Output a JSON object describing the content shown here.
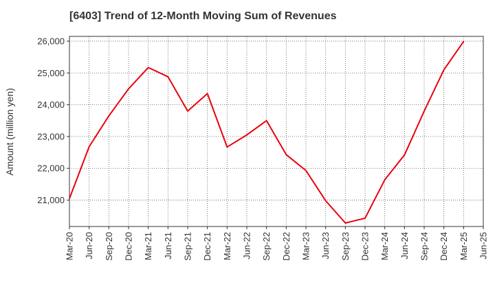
{
  "chart_data": {
    "type": "line",
    "title": "[6403]  Trend of 12-Month Moving Sum of Revenues",
    "xlabel": "",
    "ylabel": "Amount (million yen)",
    "x_ticks": [
      "Mar-20",
      "Jun-20",
      "Sep-20",
      "Dec-20",
      "Mar-21",
      "Jun-21",
      "Sep-21",
      "Dec-21",
      "Mar-22",
      "Jun-22",
      "Sep-22",
      "Dec-22",
      "Mar-23",
      "Jun-23",
      "Sep-23",
      "Dec-23",
      "Mar-24",
      "Jun-24",
      "Sep-24",
      "Dec-24",
      "Mar-25",
      "Jun-25"
    ],
    "y_ticks": [
      "21,000",
      "22,000",
      "23,000",
      "24,000",
      "25,000",
      "26,000"
    ],
    "y_tick_values": [
      21000,
      22000,
      23000,
      24000,
      25000,
      26000
    ],
    "ylim": [
      20170,
      26150
    ],
    "grid": true,
    "line_color": "#e8000b",
    "series": [
      {
        "name": "",
        "x": [
          "Mar-20",
          "Jun-20",
          "Sep-20",
          "Dec-20",
          "Mar-21",
          "Jun-21",
          "Sep-21",
          "Dec-21",
          "Mar-22",
          "Jun-22",
          "Sep-22",
          "Dec-22",
          "Mar-23",
          "Jun-23",
          "Sep-23",
          "Dec-23",
          "Mar-24",
          "Jun-24",
          "Sep-24",
          "Dec-24",
          "Mar-25"
        ],
        "values": [
          21050,
          22680,
          23650,
          24500,
          25170,
          24880,
          23800,
          24350,
          22670,
          23050,
          23500,
          22430,
          21930,
          20980,
          20280,
          20430,
          21640,
          22420,
          23800,
          25100,
          25990
        ]
      }
    ]
  }
}
